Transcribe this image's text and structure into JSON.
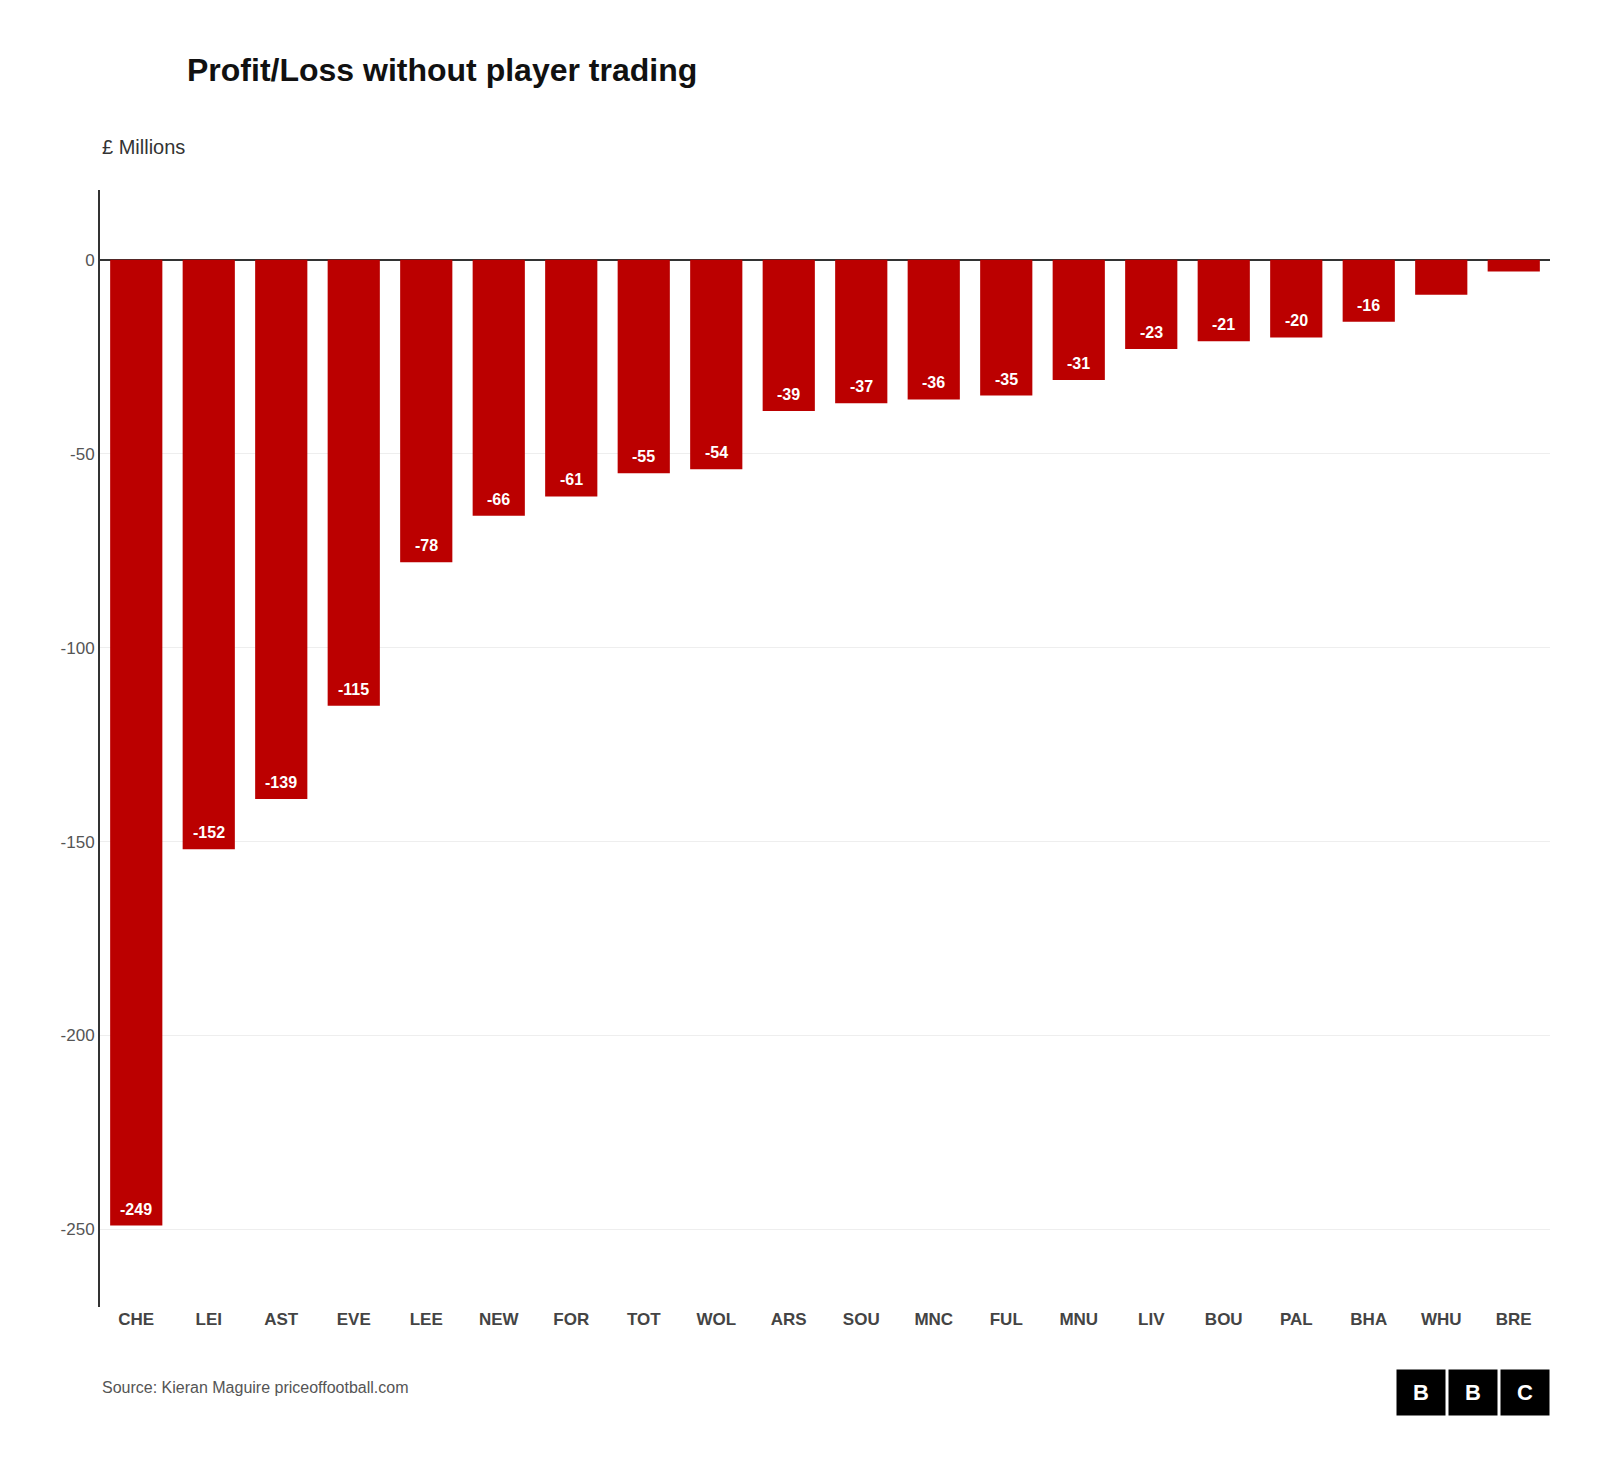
{
  "chart_data": {
    "type": "bar",
    "title": "Profit/Loss without player trading",
    "ylabel": "£ Millions",
    "annotations": [
      "Source: Kieran Maguire priceoffootball.com",
      "BBC"
    ],
    "categories": [
      "CHE",
      "LEI",
      "AST",
      "EVE",
      "LEE",
      "NEW",
      "FOR",
      "TOT",
      "WOL",
      "ARS",
      "SOU",
      "MNC",
      "FUL",
      "MNU",
      "LIV",
      "BOU",
      "PAL",
      "BHA",
      "WHU",
      "BRE"
    ],
    "values": [
      -249,
      -152,
      -139,
      -115,
      -78,
      -66,
      -61,
      -55,
      -54,
      -39,
      -37,
      -36,
      -35,
      -31,
      -23,
      -21,
      -20,
      -16,
      -9,
      -3
    ],
    "value_labels": [
      "-249",
      "-152",
      "-139",
      "-115",
      "-78",
      "-66",
      "-61",
      "-55",
      "-54",
      "-39",
      "-37",
      "-36",
      "-35",
      "-31",
      "-23",
      "-21",
      "-20",
      "-16",
      null,
      null
    ],
    "color": "#bb0000",
    "ylim": [
      -270,
      18
    ],
    "yticks": [
      0,
      -50,
      -100,
      -150,
      -200,
      -250
    ],
    "grid": true,
    "data_labels": true
  }
}
